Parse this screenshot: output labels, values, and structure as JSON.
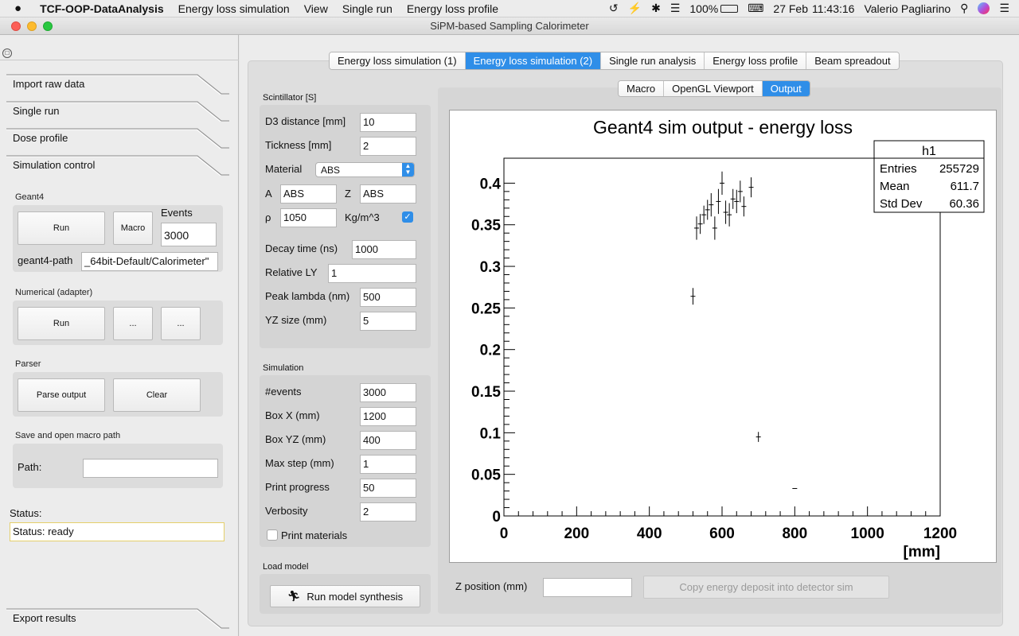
{
  "menubar": {
    "apple": "",
    "app_name": "TCF-OOP-DataAnalysis",
    "items": [
      "Energy loss simulation",
      "View",
      "Single run",
      "Energy loss profile"
    ],
    "battery": "100%",
    "date": "27 Feb",
    "time": "11:43:16",
    "user": "Valerio Pagliarino"
  },
  "window": {
    "title": "SiPM-based Sampling Calorimeter"
  },
  "sidebar": {
    "items": [
      "Import raw data",
      "Single run",
      "Dose profile",
      "Simulation control"
    ],
    "export": "Export results",
    "geant4": {
      "title": "Geant4",
      "run": "Run",
      "macro": "Macro",
      "events_label": "Events",
      "events_value": "3000",
      "path_label": "geant4-path",
      "path_value": "_64bit-Default/Calorimeter\""
    },
    "numerical": {
      "title": "Numerical (adapter)",
      "run": "Run",
      "b1": "...",
      "b2": "..."
    },
    "parser": {
      "title": "Parser",
      "parse": "Parse output",
      "clear": "Clear"
    },
    "macro_path": {
      "title": "Save and open macro path",
      "path_label": "Path:",
      "path_value": ""
    },
    "status": {
      "label": "Status:",
      "value": "Status: ready"
    }
  },
  "main": {
    "tabs": [
      {
        "label": "Energy loss simulation (1)",
        "active": false
      },
      {
        "label": "Energy loss simulation (2)",
        "active": true
      },
      {
        "label": "Single run analysis",
        "active": false
      },
      {
        "label": "Energy loss profile",
        "active": false
      },
      {
        "label": "Beam spreadout",
        "active": false
      }
    ],
    "subtabs": [
      {
        "label": "Macro",
        "active": false
      },
      {
        "label": "OpenGL Viewport",
        "active": false
      },
      {
        "label": "Output",
        "active": true
      }
    ],
    "scintillator": {
      "title": "Scintillator [S]",
      "d3_label": "D3 distance [mm]",
      "d3_value": "10",
      "thick_label": "Tickness [mm]",
      "thick_value": "2",
      "material_label": "Material",
      "material_value": "ABS",
      "a_label": "A",
      "a_value": "ABS",
      "z_label": "Z",
      "z_value": "ABS",
      "rho_label": "ρ",
      "rho_value": "1050",
      "rho_unit": "Kg/m^3",
      "rho_checked": true,
      "decay_label": "Decay time (ns)",
      "decay_value": "1000",
      "ly_label": "Relative LY",
      "ly_value": "1",
      "lambda_label": "Peak lambda (nm)",
      "lambda_value": "500",
      "yz_label": "YZ size (mm)",
      "yz_value": "5"
    },
    "simulation": {
      "title": "Simulation",
      "events_label": "#events",
      "events_value": "3000",
      "boxx_label": "Box X (mm)",
      "boxx_value": "1200",
      "boxyz_label": "Box YZ (mm)",
      "boxyz_value": "400",
      "maxstep_label": "Max step (mm)",
      "maxstep_value": "1",
      "progress_label": "Print progress",
      "progress_value": "50",
      "verb_label": "Verbosity",
      "verb_value": "2",
      "print_mat_label": "Print materials",
      "print_mat_checked": false
    },
    "load_model": {
      "title": "Load model",
      "button": "Run model synthesis"
    },
    "bottom": {
      "zpos_label": "Z position (mm)",
      "zpos_value": "",
      "copy_button": "Copy energy deposit into detector sim"
    }
  },
  "chart_data": {
    "type": "scatter",
    "title": "Geant4 sim output - energy loss",
    "xlabel": "[mm]",
    "ylabel": "",
    "xlim": [
      0,
      1200
    ],
    "ylim": [
      0,
      0.43
    ],
    "xticks": [
      "0",
      "200",
      "400",
      "600",
      "800",
      "1000",
      "1200"
    ],
    "yticks": [
      "0",
      "0.05",
      "0.1",
      "0.15",
      "0.2",
      "0.25",
      "0.3",
      "0.35",
      "0.4"
    ],
    "stats": {
      "name": "h1",
      "rows": [
        [
          "Entries",
          "255729"
        ],
        [
          "Mean",
          "611.7"
        ],
        [
          "Std Dev",
          "60.36"
        ]
      ]
    },
    "points": [
      {
        "x": 520,
        "y": 0.264,
        "err": 0.01
      },
      {
        "x": 530,
        "y": 0.346,
        "err": 0.014
      },
      {
        "x": 540,
        "y": 0.351,
        "err": 0.012
      },
      {
        "x": 550,
        "y": 0.362,
        "err": 0.011
      },
      {
        "x": 560,
        "y": 0.368,
        "err": 0.012
      },
      {
        "x": 570,
        "y": 0.374,
        "err": 0.014
      },
      {
        "x": 580,
        "y": 0.346,
        "err": 0.014
      },
      {
        "x": 590,
        "y": 0.378,
        "err": 0.015
      },
      {
        "x": 600,
        "y": 0.4,
        "err": 0.014
      },
      {
        "x": 610,
        "y": 0.365,
        "err": 0.014
      },
      {
        "x": 620,
        "y": 0.362,
        "err": 0.014
      },
      {
        "x": 630,
        "y": 0.381,
        "err": 0.012
      },
      {
        "x": 640,
        "y": 0.378,
        "err": 0.014
      },
      {
        "x": 650,
        "y": 0.39,
        "err": 0.013
      },
      {
        "x": 660,
        "y": 0.372,
        "err": 0.012
      },
      {
        "x": 680,
        "y": 0.395,
        "err": 0.012
      },
      {
        "x": 700,
        "y": 0.095,
        "err": 0.006
      },
      {
        "x": 800,
        "y": 0.033,
        "err": 0
      }
    ]
  }
}
